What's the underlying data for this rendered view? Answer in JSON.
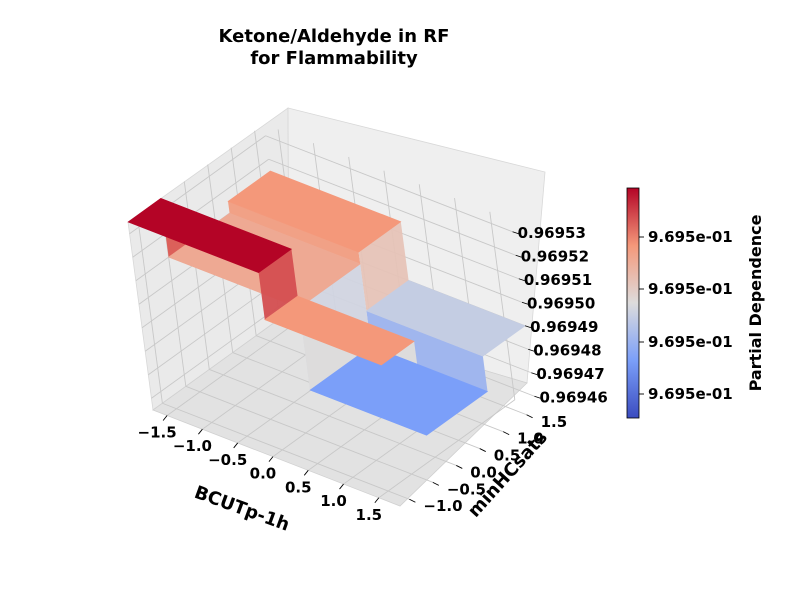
{
  "chart_data": {
    "type": "surface3d",
    "title": [
      "Ketone/Aldehyde in RF",
      "for Flammability"
    ],
    "xlabel": "BCUTp-1h",
    "ylabel": "minHCsats",
    "zlabel": "",
    "colorbar_label": "Partial Dependence",
    "colormap": "coolwarm",
    "x_ticks": [
      "−1.5",
      "−1.0",
      "−0.5",
      "0.0",
      "0.5",
      "1.0",
      "1.5"
    ],
    "y_ticks": [
      "−1.0",
      "−0.5",
      "0.0",
      "0.5",
      "1.0",
      "1.5"
    ],
    "z_ticks": [
      "0.96946",
      "0.96947",
      "0.96948",
      "0.96949",
      "0.96950",
      "0.96951",
      "0.96952",
      "0.96953"
    ],
    "colorbar_ticks": [
      "9.695e-01",
      "9.695e-01",
      "9.695e-01",
      "9.695e-01"
    ],
    "xlim": [
      -1.7,
      1.8
    ],
    "ylim": [
      -1.2,
      1.7
    ],
    "zlim": [
      0.969455,
      0.969535
    ],
    "surface_steps": {
      "x_breakpoint": 0.15,
      "y_breakpoints": [
        -0.5,
        0.8
      ],
      "description": "piecewise-constant partial dependence",
      "values": [
        {
          "x_range": [
            -1.7,
            0.15
          ],
          "y_range": [
            -1.2,
            -0.5
          ],
          "z": 0.969535
        },
        {
          "x_range": [
            -1.7,
            0.15
          ],
          "y_range": [
            -0.5,
            0.8
          ],
          "z": 0.96951
        },
        {
          "x_range": [
            -1.7,
            0.15
          ],
          "y_range": [
            0.8,
            1.7
          ],
          "z": 0.969515
        },
        {
          "x_range": [
            0.15,
            1.8
          ],
          "y_range": [
            -1.2,
            -0.5
          ],
          "z": 0.969515
        },
        {
          "x_range": [
            0.15,
            1.8
          ],
          "y_range": [
            -0.5,
            0.8
          ],
          "z": 0.969475
        },
        {
          "x_range": [
            0.15,
            1.8
          ],
          "y_range": [
            0.8,
            1.7
          ],
          "z": 0.96949
        }
      ]
    }
  },
  "colors": {
    "high": "#b40426",
    "mid": "#dddcdc",
    "low": "#3b4cc0",
    "pane": "#f2f2f2"
  }
}
